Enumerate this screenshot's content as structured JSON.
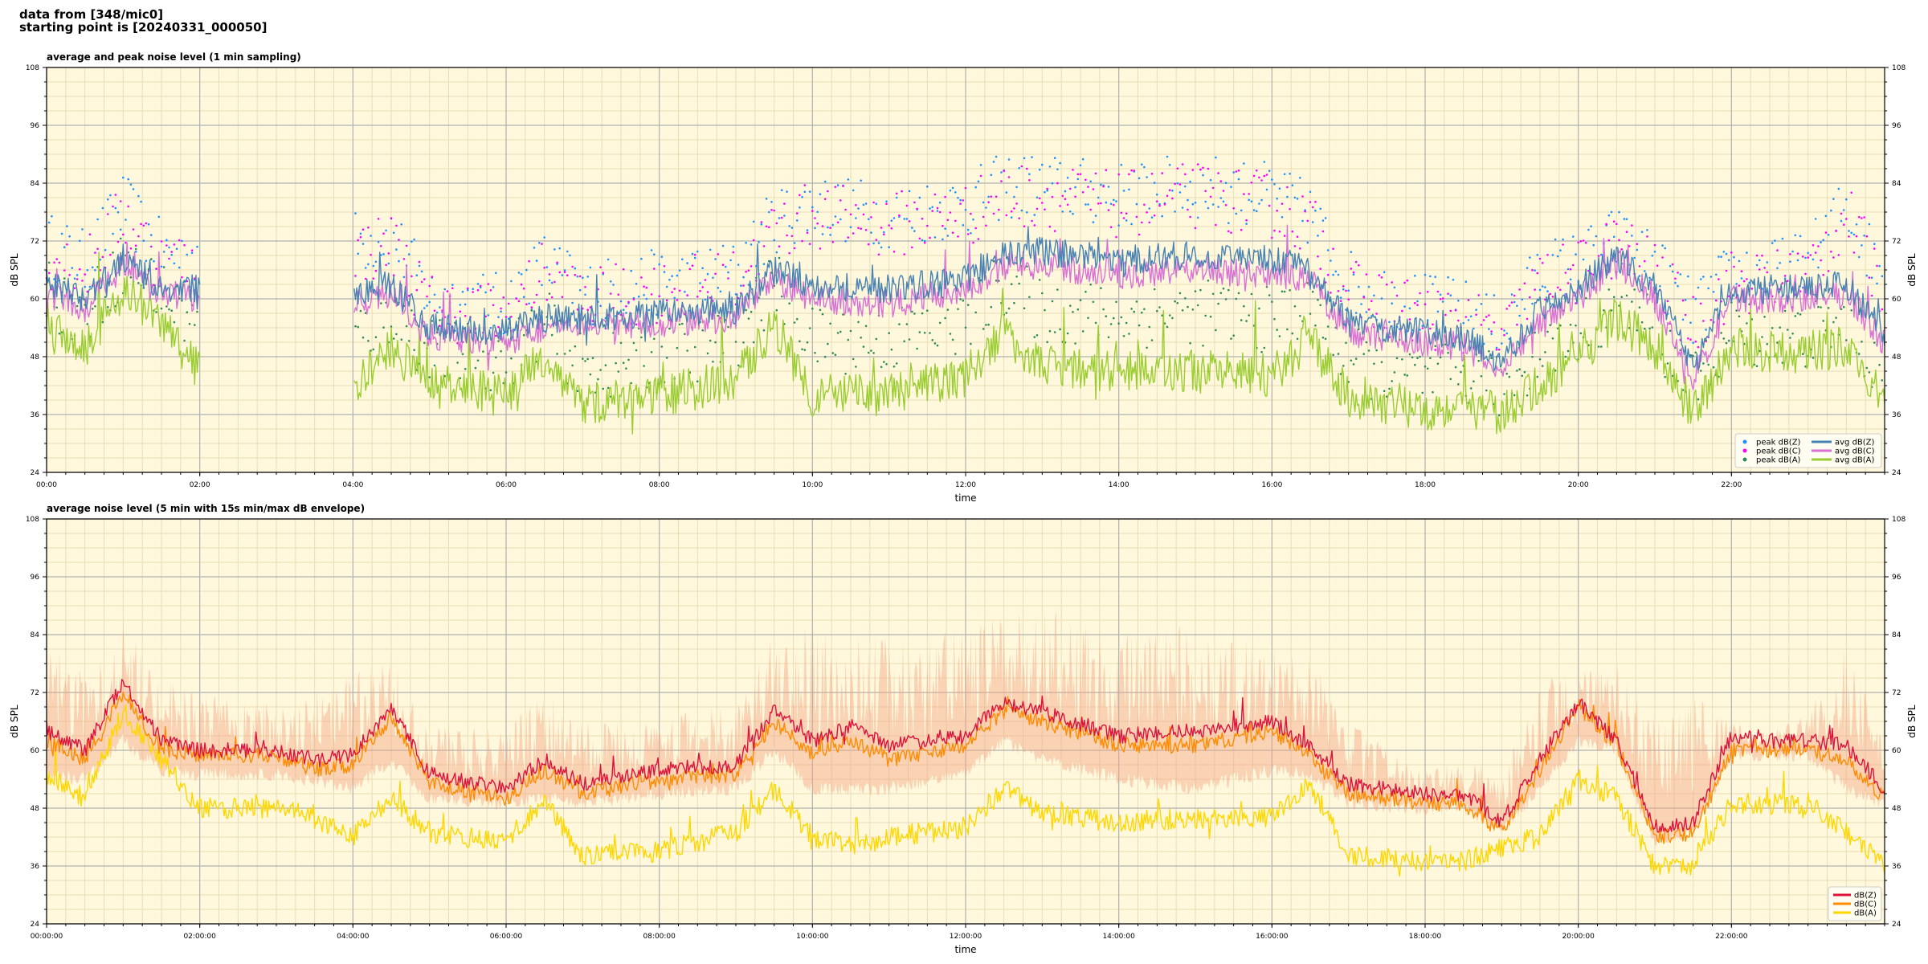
{
  "header": {
    "line1": "data from [348/mic0]",
    "line2": "starting point is [20240331_000050]"
  },
  "chart_data": [
    {
      "type": "line",
      "title": "average and peak noise level (1 min sampling)",
      "xlabel": "time",
      "ylabel": "dB SPL",
      "ylim": [
        24,
        108
      ],
      "y_ticks": [
        "24",
        "36",
        "48",
        "60",
        "72",
        "84",
        "96",
        "108"
      ],
      "x_ticks": [
        "00:00",
        "02:00",
        "04:00",
        "06:00",
        "08:00",
        "10:00",
        "12:00",
        "14:00",
        "16:00",
        "18:00",
        "20:00",
        "22:00"
      ],
      "x_range_hours": [
        0,
        24
      ],
      "grid": true,
      "legend_location": "lower-right",
      "colors": {
        "avg_z": "#4682b4",
        "avg_c": "#da70d6",
        "avg_a": "#9acd32",
        "peak_z": "#1e90ff",
        "peak_c": "#ff00ff",
        "peak_a": "#2e8b57",
        "background": "#fff8dc"
      },
      "series": [
        {
          "name": "avg dB(Z)",
          "kind": "line",
          "x": [
            0,
            0.5,
            1.0,
            1.5,
            2.0,
            3.0,
            4.0,
            4.5,
            5.0,
            6.0,
            6.5,
            7.0,
            8.0,
            9.0,
            9.5,
            10.0,
            11.0,
            12.0,
            12.5,
            13.0,
            14.0,
            15.0,
            16.0,
            16.5,
            17.0,
            18.0,
            18.5,
            19.0,
            19.5,
            20.0,
            20.5,
            21.0,
            21.5,
            22.0,
            22.5,
            23.0,
            23.5,
            24.0
          ],
          "values": [
            63,
            60,
            68,
            62,
            62,
            null,
            61,
            63,
            54,
            53,
            56,
            56,
            57,
            58,
            66,
            63,
            62,
            64,
            69,
            70,
            68,
            69,
            68,
            66,
            55,
            53,
            52,
            47,
            58,
            62,
            69,
            62,
            46,
            62,
            62,
            62,
            63,
            53
          ]
        },
        {
          "name": "avg dB(C)",
          "kind": "line",
          "x": [
            0,
            0.5,
            1.0,
            1.5,
            2.0,
            3.0,
            4.0,
            4.5,
            5.0,
            6.0,
            6.5,
            7.0,
            8.0,
            9.0,
            9.5,
            10.0,
            11.0,
            12.0,
            12.5,
            13.0,
            14.0,
            15.0,
            16.0,
            16.5,
            17.0,
            18.0,
            18.5,
            19.0,
            19.5,
            20.0,
            20.5,
            21.0,
            21.5,
            22.0,
            22.5,
            23.0,
            23.5,
            24.0
          ],
          "values": [
            61,
            58,
            67,
            61,
            60,
            null,
            59,
            61,
            52,
            51,
            54,
            54,
            55,
            56,
            64,
            60,
            59,
            62,
            67,
            67,
            65,
            66,
            65,
            64,
            53,
            51,
            50,
            45,
            56,
            60,
            68,
            60,
            43,
            60,
            60,
            60,
            61,
            51
          ]
        },
        {
          "name": "avg dB(A)",
          "kind": "line",
          "x": [
            0,
            0.5,
            1.0,
            1.5,
            2.0,
            3.0,
            4.0,
            4.5,
            5.0,
            6.0,
            6.5,
            7.0,
            8.0,
            9.0,
            9.5,
            10.0,
            11.0,
            12.0,
            12.5,
            13.0,
            14.0,
            15.0,
            16.0,
            16.5,
            17.0,
            18.0,
            18.5,
            19.0,
            19.5,
            20.0,
            20.5,
            21.0,
            21.5,
            22.0,
            22.5,
            23.0,
            23.5,
            24.0
          ],
          "values": [
            55,
            50,
            62,
            55,
            45,
            null,
            41,
            50,
            42,
            40,
            48,
            38,
            40,
            43,
            55,
            40,
            40,
            44,
            53,
            46,
            45,
            45,
            44,
            51,
            40,
            37,
            38,
            36,
            42,
            48,
            56,
            50,
            36,
            50,
            49,
            49,
            50,
            38
          ]
        },
        {
          "name": "peak dB(Z)",
          "kind": "scatter",
          "x": [
            0,
            0.5,
            1.0,
            1.5,
            2.0,
            3.0,
            4.0,
            4.5,
            5.0,
            6.0,
            6.5,
            7.0,
            8.0,
            9.0,
            9.5,
            10.0,
            11.0,
            12.0,
            12.5,
            13.0,
            14.0,
            15.0,
            16.0,
            16.5,
            17.0,
            18.0,
            18.5,
            19.0,
            19.5,
            20.0,
            20.5,
            21.0,
            21.5,
            22.0,
            22.5,
            23.0,
            23.5,
            24.0
          ],
          "values": [
            70,
            66,
            78,
            68,
            67,
            null,
            70,
            72,
            59,
            57,
            66,
            60,
            62,
            64,
            75,
            78,
            76,
            78,
            82,
            82,
            80,
            82,
            80,
            76,
            62,
            57,
            56,
            52,
            64,
            66,
            71,
            66,
            55,
            64,
            64,
            66,
            78,
            62
          ]
        },
        {
          "name": "peak dB(C)",
          "kind": "scatter",
          "x": [
            0,
            0.5,
            1.0,
            1.5,
            2.0,
            3.0,
            4.0,
            4.5,
            5.0,
            6.0,
            6.5,
            7.0,
            8.0,
            9.0,
            9.5,
            10.0,
            11.0,
            12.0,
            12.5,
            13.0,
            14.0,
            15.0,
            16.0,
            16.5,
            17.0,
            18.0,
            18.5,
            19.0,
            19.5,
            20.0,
            20.5,
            21.0,
            21.5,
            22.0,
            22.5,
            23.0,
            23.5,
            24.0
          ],
          "values": [
            68,
            64,
            76,
            66,
            65,
            null,
            68,
            70,
            57,
            55,
            64,
            58,
            60,
            62,
            73,
            76,
            74,
            76,
            80,
            80,
            78,
            80,
            78,
            74,
            60,
            55,
            54,
            50,
            62,
            64,
            70,
            64,
            53,
            62,
            62,
            64,
            76,
            60
          ]
        },
        {
          "name": "peak dB(A)",
          "kind": "scatter",
          "x": [
            0,
            0.5,
            1.0,
            1.5,
            2.0,
            3.0,
            4.0,
            4.5,
            5.0,
            6.0,
            6.5,
            7.0,
            8.0,
            9.0,
            9.5,
            10.0,
            11.0,
            12.0,
            12.5,
            13.0,
            14.0,
            15.0,
            16.0,
            16.5,
            17.0,
            18.0,
            18.5,
            19.0,
            19.5,
            20.0,
            20.5,
            21.0,
            21.5,
            22.0,
            22.5,
            23.0,
            23.5,
            24.0
          ],
          "values": [
            60,
            55,
            66,
            60,
            52,
            null,
            50,
            56,
            48,
            46,
            54,
            44,
            46,
            50,
            62,
            50,
            50,
            54,
            62,
            56,
            55,
            56,
            54,
            58,
            46,
            42,
            43,
            40,
            48,
            52,
            58,
            52,
            40,
            52,
            51,
            51,
            54,
            42
          ]
        }
      ]
    },
    {
      "type": "line",
      "title": "average noise level (5 min with 15s min/max dB envelope)",
      "xlabel": "time",
      "ylabel": "dB SPL",
      "ylim": [
        24,
        108
      ],
      "y_ticks": [
        "24",
        "36",
        "48",
        "60",
        "72",
        "84",
        "96",
        "108"
      ],
      "x_ticks": [
        "00:00:00",
        "02:00:00",
        "04:00:00",
        "06:00:00",
        "08:00:00",
        "10:00:00",
        "12:00:00",
        "14:00:00",
        "16:00:00",
        "18:00:00",
        "20:00:00",
        "22:00:00"
      ],
      "x_range_hours": [
        0,
        24
      ],
      "grid": true,
      "legend_location": "lower-right",
      "colors": {
        "z": "#dc143c",
        "c": "#ff8c00",
        "a": "#ffd700",
        "envelope": "#f4a582",
        "background": "#fff8dc"
      },
      "series": [
        {
          "name": "dB(Z)",
          "x": [
            0,
            0.5,
            1.0,
            1.5,
            2.0,
            2.5,
            3.0,
            3.5,
            4.0,
            4.5,
            5.0,
            6.0,
            6.5,
            7.0,
            8.0,
            9.0,
            9.5,
            10.0,
            10.5,
            11.0,
            12.0,
            12.5,
            13.0,
            14.0,
            15.0,
            16.0,
            16.5,
            17.0,
            18.0,
            18.5,
            19.0,
            19.5,
            20.0,
            20.5,
            21.0,
            21.5,
            22.0,
            22.5,
            23.0,
            23.5,
            24.0
          ],
          "values": [
            64,
            60,
            74,
            62,
            60,
            60,
            60,
            58,
            59,
            69,
            55,
            52,
            58,
            53,
            56,
            57,
            68,
            62,
            65,
            61,
            63,
            70,
            68,
            63,
            64,
            66,
            61,
            53,
            51,
            51,
            45,
            58,
            70,
            62,
            44,
            45,
            63,
            62,
            62,
            61,
            52
          ]
        },
        {
          "name": "dB(C)",
          "x": [
            0,
            0.5,
            1.0,
            1.5,
            2.0,
            2.5,
            3.0,
            3.5,
            4.0,
            4.5,
            5.0,
            6.0,
            6.5,
            7.0,
            8.0,
            9.0,
            9.5,
            10.0,
            10.5,
            11.0,
            12.0,
            12.5,
            13.0,
            14.0,
            15.0,
            16.0,
            16.5,
            17.0,
            18.0,
            18.5,
            19.0,
            19.5,
            20.0,
            20.5,
            21.0,
            21.5,
            22.0,
            22.5,
            23.0,
            23.5,
            24.0
          ],
          "values": [
            62,
            58,
            72,
            60,
            59,
            59,
            59,
            56,
            57,
            67,
            53,
            50,
            56,
            51,
            54,
            55,
            66,
            59,
            62,
            58,
            61,
            68,
            66,
            61,
            61,
            64,
            59,
            51,
            49,
            49,
            43,
            56,
            69,
            61,
            42,
            43,
            60,
            60,
            60,
            58,
            50
          ]
        },
        {
          "name": "dB(A)",
          "x": [
            0,
            0.5,
            1.0,
            1.5,
            2.0,
            2.5,
            3.0,
            3.5,
            4.0,
            4.5,
            5.0,
            6.0,
            6.5,
            7.0,
            8.0,
            9.0,
            9.5,
            10.0,
            10.5,
            11.0,
            12.0,
            12.5,
            13.0,
            14.0,
            15.0,
            16.0,
            16.5,
            17.0,
            18.0,
            18.5,
            19.0,
            19.5,
            20.0,
            20.5,
            21.0,
            21.5,
            22.0,
            22.5,
            23.0,
            23.5,
            24.0
          ],
          "values": [
            55,
            50,
            68,
            58,
            48,
            48,
            48,
            46,
            42,
            50,
            43,
            41,
            50,
            38,
            39,
            43,
            52,
            42,
            40,
            42,
            44,
            52,
            47,
            45,
            46,
            46,
            53,
            38,
            37,
            37,
            40,
            42,
            54,
            50,
            36,
            36,
            49,
            49,
            49,
            43,
            36
          ]
        }
      ],
      "envelope": {
        "name": "15s min/max dB envelope",
        "x": [
          0,
          0.5,
          1.0,
          1.5,
          2.0,
          3.0,
          4.0,
          4.5,
          5.0,
          6.0,
          6.5,
          7.0,
          8.0,
          9.0,
          9.5,
          10.0,
          11.0,
          12.0,
          12.5,
          13.0,
          14.0,
          15.0,
          16.0,
          16.5,
          17.0,
          18.0,
          18.5,
          19.0,
          19.5,
          20.0,
          20.5,
          21.0,
          21.5,
          22.0,
          22.5,
          23.0,
          23.5,
          24.0
        ],
        "min": [
          55,
          54,
          62,
          56,
          55,
          55,
          52,
          58,
          50,
          49,
          50,
          49,
          51,
          52,
          60,
          52,
          52,
          55,
          62,
          58,
          54,
          52,
          56,
          55,
          49,
          48,
          48,
          43,
          52,
          62,
          60,
          41,
          43,
          59,
          59,
          59,
          52,
          49
        ],
        "max": [
          84,
          76,
          88,
          76,
          72,
          70,
          76,
          80,
          66,
          64,
          74,
          66,
          66,
          72,
          84,
          86,
          84,
          86,
          88,
          90,
          86,
          86,
          84,
          80,
          66,
          56,
          58,
          56,
          76,
          76,
          78,
          68,
          72,
          66,
          64,
          68,
          84,
          64
        ]
      }
    }
  ]
}
